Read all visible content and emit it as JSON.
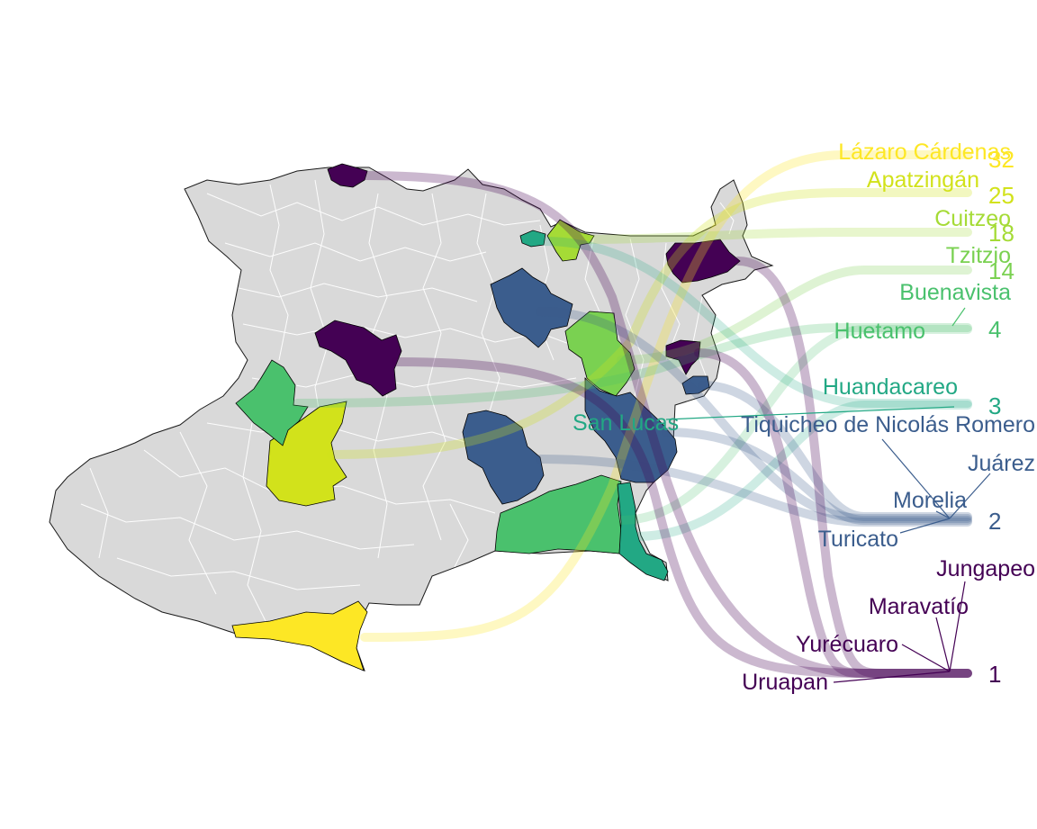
{
  "colors": {
    "background": "#ffffff",
    "state_fill": "#d9d9d9",
    "border_internal": "#ffffff",
    "border_outline": "#1a1a1a",
    "c32": "#fde725",
    "c25": "#d2e21b",
    "c18": "#a5db36",
    "c14": "#7ad151",
    "c4": "#4ac16d",
    "c3": "#22a884",
    "c2": "#3b5d8d",
    "c1": "#440154"
  },
  "groups": [
    {
      "value": "32",
      "color": "#fde725",
      "names": [
        "Lázaro Cárdenas"
      ]
    },
    {
      "value": "25",
      "color": "#d2e21b",
      "names": [
        "Apatzingán"
      ]
    },
    {
      "value": "18",
      "color": "#a5db36",
      "names": [
        "Cuitzeo"
      ]
    },
    {
      "value": "14",
      "color": "#7ad151",
      "names": [
        "Tzitzio"
      ]
    },
    {
      "value": "4",
      "color": "#4ac16d",
      "names": [
        "Buenavista",
        "Huetamo"
      ]
    },
    {
      "value": "3",
      "color": "#22a884",
      "names": [
        "Huandacareo",
        "San Lucas"
      ]
    },
    {
      "value": "2",
      "color": "#3b5d8d",
      "names": [
        "Tiquicheo de Nicolás Romero",
        "Juárez",
        "Morelia",
        "Turicato"
      ]
    },
    {
      "value": "1",
      "color": "#440154",
      "names": [
        "Jungapeo",
        "Maravatío",
        "Yurécuaro",
        "Uruapan"
      ]
    }
  ],
  "labels": {
    "lazaro": "Lázaro Cárdenas",
    "apatzingan": "Apatzingán",
    "cuitzeo": "Cuitzeo",
    "tzitzio": "Tzitzio",
    "buenavista": "Buenavista",
    "huetamo": "Huetamo",
    "huandacareo": "Huandacareo",
    "sanlucas": "San Lucas",
    "tiquicheo": "Tiquicheo de Nicolás Romero",
    "juarez": "Juárez",
    "morelia": "Morelia",
    "turicato": "Turicato",
    "jungapeo": "Jungapeo",
    "maravatio": "Maravatío",
    "yurecuaro": "Yurécuaro",
    "uruapan": "Uruapan"
  },
  "values": {
    "v32": "32",
    "v25": "25",
    "v18": "18",
    "v14": "14",
    "v4": "4",
    "v3": "3",
    "v2": "2",
    "v1": "1"
  }
}
